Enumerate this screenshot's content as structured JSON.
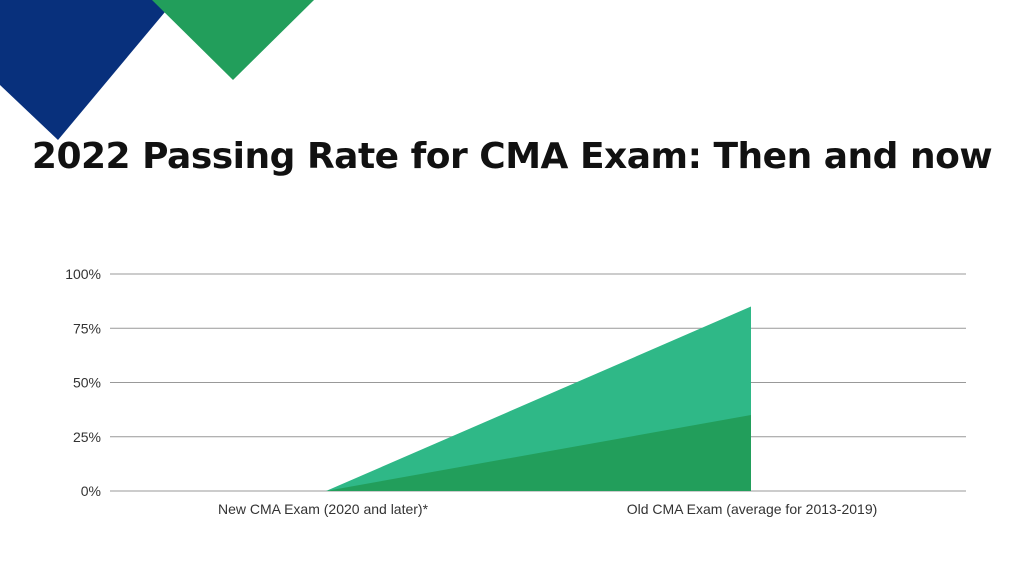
{
  "title": "2022 Passing Rate for CMA Exam: Then and now",
  "colors": {
    "navy": "#08307c",
    "green": "#229e5b",
    "light_green": "#2fb887",
    "grid": "#999999"
  },
  "chart_data": {
    "type": "area",
    "title": "2022 Passing Rate for CMA Exam: Then and now",
    "categories": [
      "New CMA Exam (2020 and later)*",
      "Old CMA Exam (average for 2013-2019)"
    ],
    "series": [
      {
        "values": [
          0,
          85
        ],
        "color": "#2fb887"
      },
      {
        "values": [
          0,
          35
        ],
        "color": "#229e5b"
      }
    ],
    "ylim": [
      0,
      100
    ],
    "yticks": [
      0,
      25,
      50,
      75,
      100
    ],
    "ytick_labels": [
      "0%",
      "25%",
      "50%",
      "75%",
      "100%"
    ],
    "grid": true,
    "legend": "none"
  }
}
